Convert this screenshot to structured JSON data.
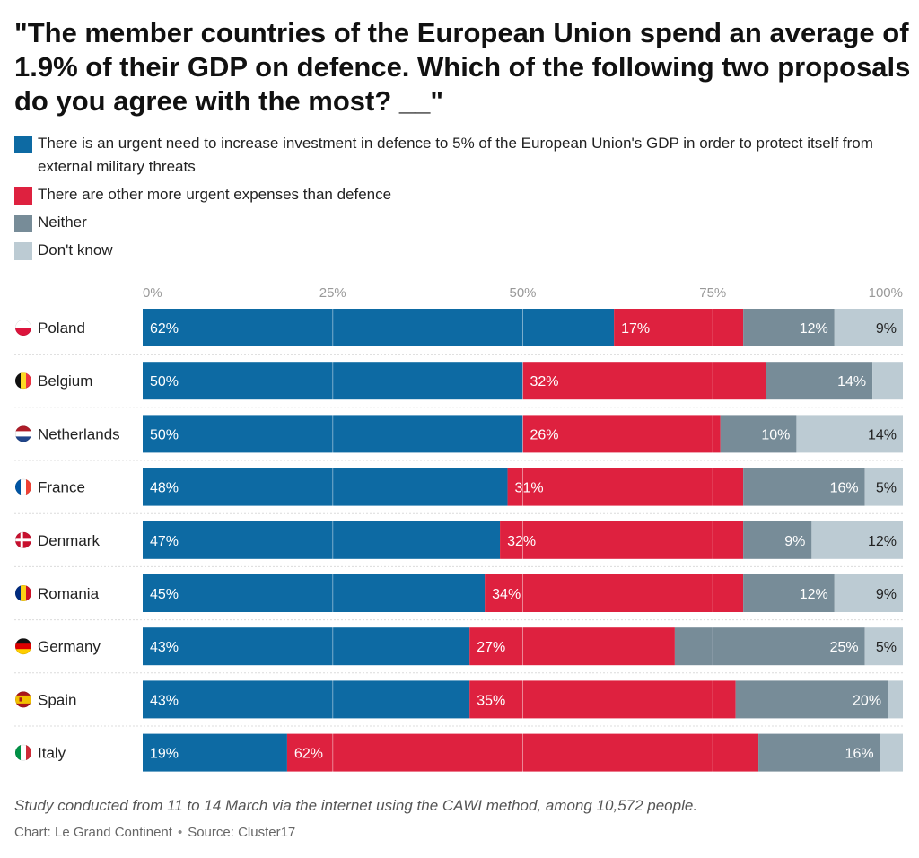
{
  "title": "\"The member countries of the European Union spend an average of 1.9% of their GDP on defence. Which of the following two proposals do you agree with the most? __\"",
  "legend": [
    {
      "label": "There is an urgent need to increase investment in defence to 5% of the European Union's GDP in order to protect itself from external military threats",
      "color": "#0d6aa3"
    },
    {
      "label": "There are other more urgent expenses than defence",
      "color": "#de213f"
    },
    {
      "label": "Neither",
      "color": "#778c98"
    },
    {
      "label": "Don't know",
      "color": "#bccbd3"
    }
  ],
  "chart_data": {
    "type": "bar",
    "orientation": "horizontal",
    "stacked": true,
    "axis_ticks": [
      "0%",
      "25%",
      "50%",
      "75%",
      "100%"
    ],
    "xlim": [
      0,
      100
    ],
    "categories": [
      "Poland",
      "Belgium",
      "Netherlands",
      "France",
      "Denmark",
      "Romania",
      "Germany",
      "Spain",
      "Italy"
    ],
    "series": [
      {
        "name": "There is an urgent need to increase investment in defence to 5% of the European Union's GDP in order to protect itself from external military threats",
        "color": "#0d6aa3",
        "values": [
          62,
          50,
          50,
          48,
          47,
          45,
          43,
          43,
          19
        ],
        "labels": [
          "62%",
          "50%",
          "50%",
          "48%",
          "47%",
          "45%",
          "43%",
          "43%",
          "19%"
        ]
      },
      {
        "name": "There are other more urgent expenses than defence",
        "color": "#de213f",
        "values": [
          17,
          32,
          26,
          31,
          32,
          34,
          27,
          35,
          62
        ],
        "labels": [
          "17%",
          "32%",
          "26%",
          "31%",
          "32%",
          "34%",
          "27%",
          "35%",
          "62%"
        ]
      },
      {
        "name": "Neither",
        "color": "#778c98",
        "values": [
          12,
          14,
          10,
          16,
          9,
          12,
          25,
          20,
          16
        ],
        "labels": [
          "12%",
          "14%",
          "10%",
          "16%",
          "9%",
          "12%",
          "25%",
          "20%",
          "16%"
        ]
      },
      {
        "name": "Don't know",
        "color": "#bccbd3",
        "values": [
          9,
          4,
          14,
          5,
          12,
          9,
          5,
          2,
          3
        ],
        "labels": [
          "9%",
          "",
          "14%",
          "5%",
          "12%",
          "9%",
          "5%",
          "",
          ""
        ]
      }
    ],
    "flags": [
      "poland-flag-icon",
      "belgium-flag-icon",
      "netherlands-flag-icon",
      "france-flag-icon",
      "denmark-flag-icon",
      "romania-flag-icon",
      "germany-flag-icon",
      "spain-flag-icon",
      "italy-flag-icon"
    ]
  },
  "footer": {
    "note": "Study conducted from 11 to 14 March via the internet using the CAWI method, among 10,572 people.",
    "chart_credit": "Chart: Le Grand Continent",
    "separator": "•",
    "source": "Source: Cluster17"
  }
}
